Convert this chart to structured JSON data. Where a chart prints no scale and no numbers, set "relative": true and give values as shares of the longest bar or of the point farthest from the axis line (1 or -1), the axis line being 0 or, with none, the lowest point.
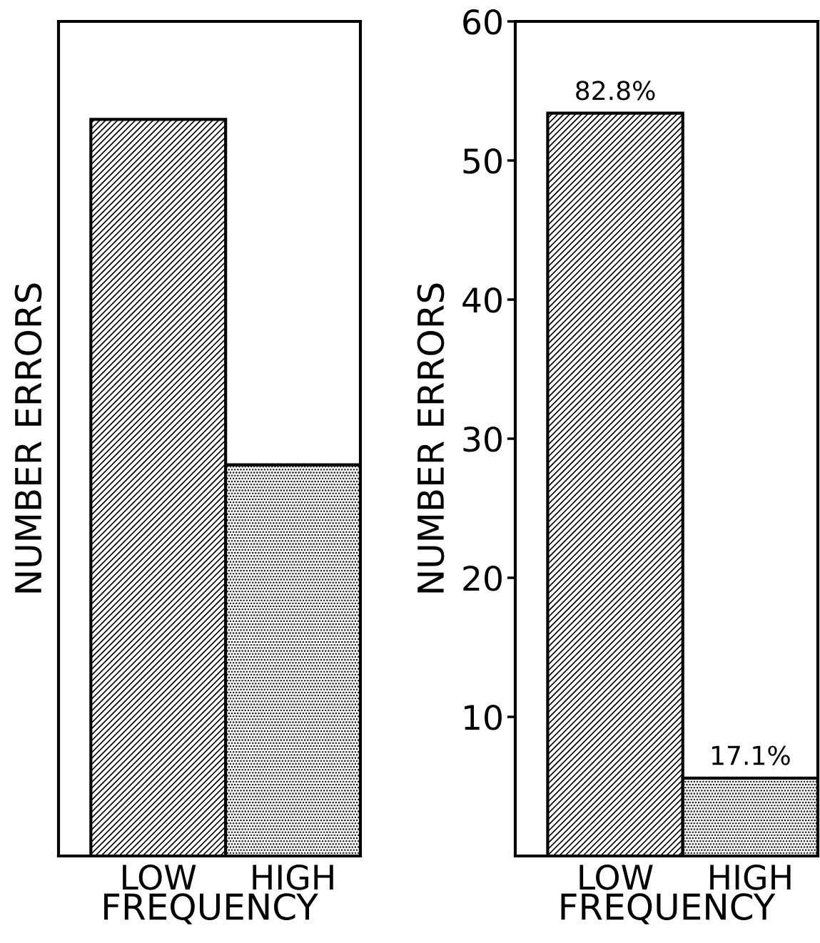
{
  "chart_data": [
    {
      "type": "bar",
      "categories": [
        "LOW",
        "HIGH"
      ],
      "values": [
        1,
        0.531
      ],
      "relative": true,
      "xlabel": "FREQUENCY",
      "ylabel": "NUMBER ERRORS",
      "tick_labels": "x"
    },
    {
      "type": "bar",
      "categories": [
        "LOW",
        "HIGH"
      ],
      "values": [
        53.4,
        5.6
      ],
      "xlabel": "FREQUENCY",
      "ylabel": "NUMBER ERRORS",
      "ylim": [
        0,
        60
      ],
      "yticks": [
        10,
        20,
        30,
        40,
        50,
        60
      ],
      "annotations": [
        {
          "text": "82.8%",
          "x": "LOW",
          "y": 53.4
        },
        {
          "text": "17.1%",
          "x": "HIGH",
          "y": 5.6
        }
      ]
    }
  ]
}
